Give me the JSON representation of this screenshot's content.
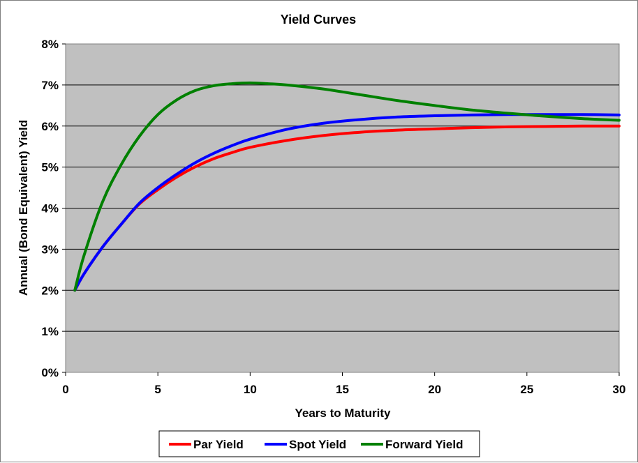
{
  "chart_data": {
    "type": "line",
    "title": "Yield Curves",
    "xlabel": "Years to Maturity",
    "ylabel": "Annual (Bond Equivalent) Yield",
    "xlim": [
      0,
      30
    ],
    "ylim": [
      0,
      8
    ],
    "x_ticks": [
      "0",
      "5",
      "10",
      "15",
      "20",
      "25",
      "30"
    ],
    "y_ticks": [
      "0%",
      "1%",
      "2%",
      "3%",
      "4%",
      "5%",
      "6%",
      "7%",
      "8%"
    ],
    "grid": "horizontal",
    "plot_background": "#c0c0c0",
    "legend_position": "bottom",
    "series": [
      {
        "name": "Par Yield",
        "color": "#ff0000",
        "x": [
          0.5,
          1,
          2,
          3,
          4,
          5,
          6,
          7,
          8,
          9,
          10,
          12,
          14,
          16,
          18,
          20,
          22,
          24,
          26,
          28,
          30
        ],
        "y": [
          2.0,
          2.4,
          3.05,
          3.6,
          4.1,
          4.45,
          4.75,
          5.0,
          5.2,
          5.35,
          5.48,
          5.65,
          5.77,
          5.85,
          5.9,
          5.93,
          5.96,
          5.98,
          5.99,
          6.0,
          6.0
        ]
      },
      {
        "name": "Spot Yield",
        "color": "#0000ff",
        "x": [
          0.5,
          1,
          2,
          3,
          4,
          5,
          6,
          7,
          8,
          9,
          10,
          12,
          14,
          16,
          18,
          20,
          22,
          24,
          26,
          28,
          30
        ],
        "y": [
          2.0,
          2.4,
          3.05,
          3.6,
          4.12,
          4.5,
          4.82,
          5.1,
          5.33,
          5.52,
          5.68,
          5.92,
          6.07,
          6.16,
          6.22,
          6.25,
          6.27,
          6.28,
          6.28,
          6.28,
          6.27
        ]
      },
      {
        "name": "Forward Yield",
        "color": "#008000",
        "x": [
          0.5,
          1,
          2,
          3,
          4,
          5,
          6,
          7,
          8,
          9,
          10,
          11,
          12,
          14,
          16,
          18,
          20,
          22,
          24,
          26,
          28,
          30
        ],
        "y": [
          2.0,
          2.85,
          4.15,
          5.05,
          5.75,
          6.28,
          6.63,
          6.86,
          6.98,
          7.03,
          7.05,
          7.03,
          7.0,
          6.9,
          6.76,
          6.62,
          6.5,
          6.39,
          6.31,
          6.24,
          6.18,
          6.14
        ]
      }
    ]
  }
}
